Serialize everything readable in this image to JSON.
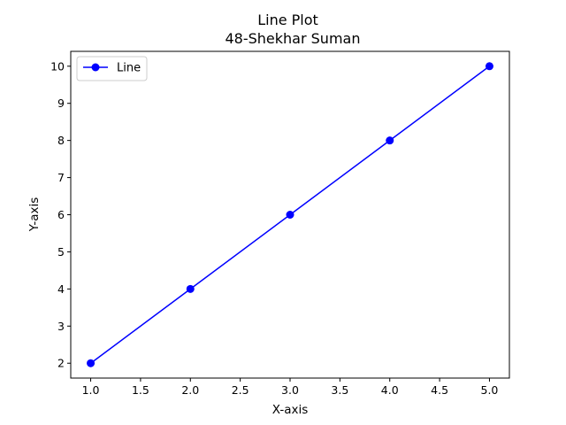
{
  "chart_data": {
    "type": "line",
    "title": "Line Plot",
    "subtitle": "48-Shekhar Suman",
    "xlabel": "X-axis",
    "ylabel": "Y-axis",
    "x": [
      1,
      2,
      3,
      4,
      5
    ],
    "series": [
      {
        "name": "Line",
        "values": [
          2,
          4,
          6,
          8,
          10
        ],
        "color": "#0000ff",
        "marker": "circle"
      }
    ],
    "xticks": [
      "1.0",
      "1.5",
      "2.0",
      "2.5",
      "3.0",
      "3.5",
      "4.0",
      "4.5",
      "5.0"
    ],
    "yticks": [
      "2",
      "3",
      "4",
      "5",
      "6",
      "7",
      "8",
      "9",
      "10"
    ],
    "xlim": [
      0.8,
      5.2
    ],
    "ylim": [
      1.6,
      10.4
    ],
    "grid": false,
    "legend_position": "top-left"
  }
}
